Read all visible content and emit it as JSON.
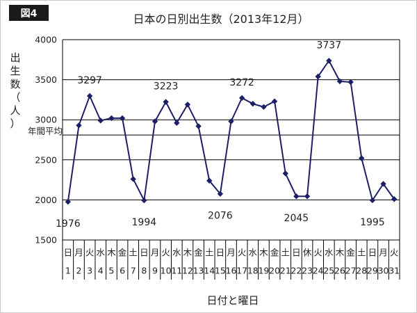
{
  "figure_label": "図4",
  "chart_data": {
    "type": "line",
    "title": "日本の日別出生数（2013年12月）",
    "xlabel": "日付と曜日",
    "ylabel_chars": [
      "出",
      "生",
      "数",
      "（",
      "人",
      "）"
    ],
    "ylim": [
      1500,
      4000
    ],
    "yticks": [
      1500,
      2000,
      2500,
      3000,
      3500,
      4000
    ],
    "grid": true,
    "days": [
      "1",
      "2",
      "3",
      "4",
      "5",
      "6",
      "7",
      "8",
      "9",
      "10",
      "11",
      "12",
      "13",
      "14",
      "15",
      "16",
      "17",
      "18",
      "19",
      "20",
      "21",
      "22",
      "23",
      "24",
      "25",
      "26",
      "27",
      "28",
      "29",
      "30",
      "31"
    ],
    "weekdays": [
      "日",
      "月",
      "火",
      "水",
      "木",
      "金",
      "土",
      "日",
      "月",
      "火",
      "水",
      "木",
      "金",
      "土",
      "日",
      "月",
      "火",
      "水",
      "木",
      "金",
      "土",
      "日",
      "休",
      "火",
      "水",
      "木",
      "金",
      "土",
      "日",
      "月",
      "火"
    ],
    "values": [
      1976,
      2930,
      3297,
      2990,
      3020,
      3020,
      2260,
      1994,
      2980,
      3223,
      2960,
      3190,
      2920,
      2240,
      2076,
      2980,
      3272,
      3200,
      3160,
      3230,
      2330,
      2045,
      2045,
      3540,
      3737,
      3480,
      3470,
      2520,
      1995,
      2200,
      2010
    ],
    "average_line": {
      "label": "年間平均",
      "value": 2810
    },
    "data_labels": [
      {
        "day": 1,
        "text": "1976",
        "position": "below"
      },
      {
        "day": 3,
        "text": "3297",
        "position": "above"
      },
      {
        "day": 8,
        "text": "1994",
        "position": "below"
      },
      {
        "day": 10,
        "text": "3223",
        "position": "above"
      },
      {
        "day": 15,
        "text": "2076",
        "position": "below"
      },
      {
        "day": 17,
        "text": "3272",
        "position": "above"
      },
      {
        "day": 22,
        "text": "2045",
        "position": "below"
      },
      {
        "day": 25,
        "text": "3737",
        "position": "above"
      },
      {
        "day": 29,
        "text": "1995",
        "position": "below"
      }
    ],
    "colors": {
      "line": "#1c1f66",
      "marker": "#1c1f66",
      "grid": "#000000"
    }
  }
}
